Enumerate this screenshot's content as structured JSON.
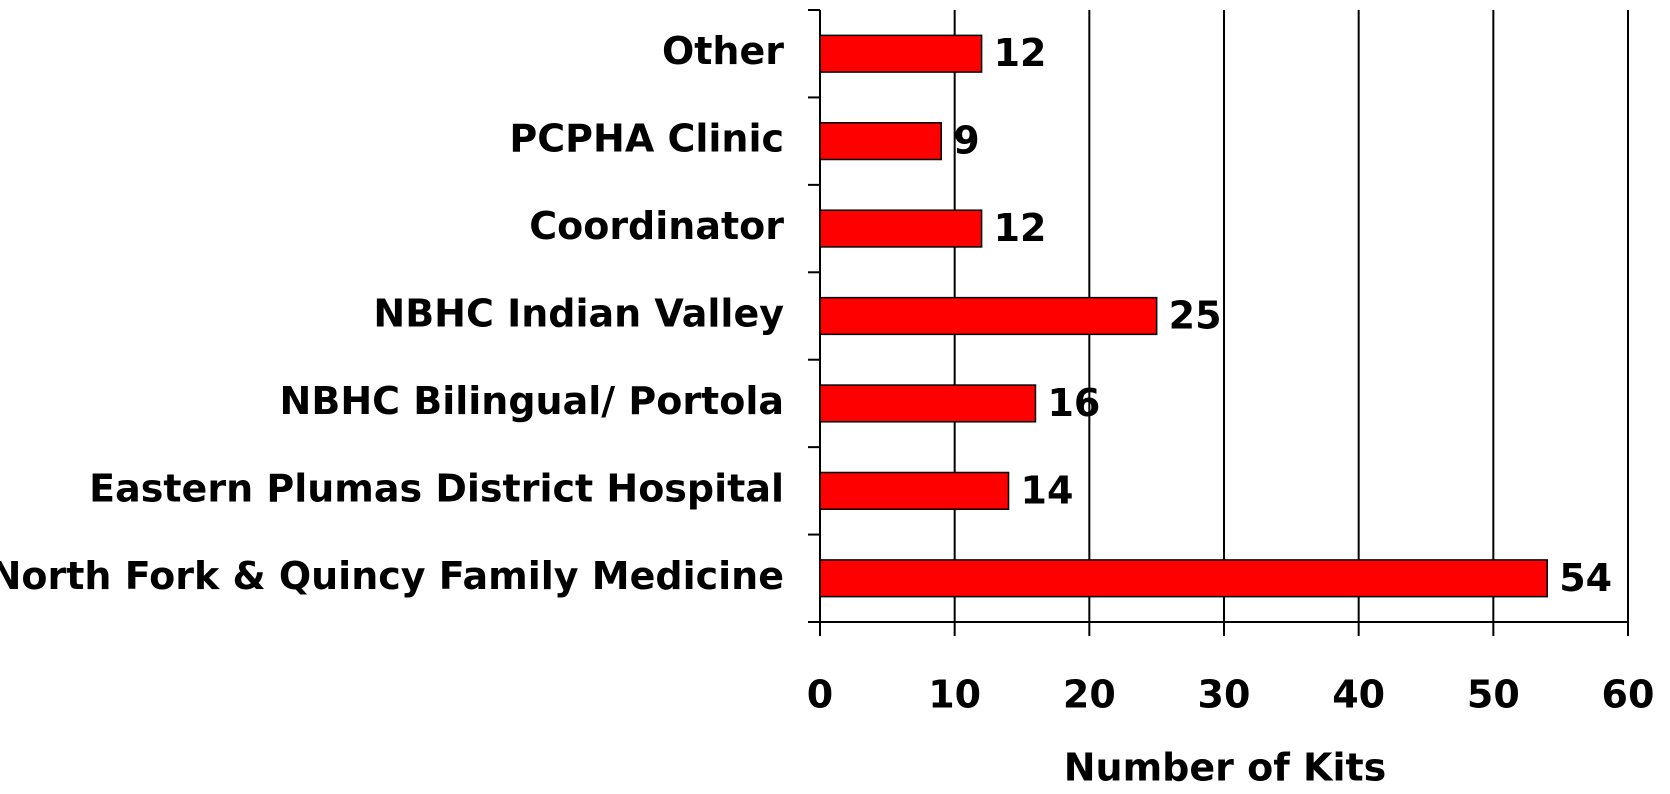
{
  "chart_data": {
    "type": "bar",
    "orientation": "horizontal",
    "categories": [
      "Other",
      "PCPHA Clinic",
      "Coordinator",
      "NBHC Indian Valley",
      "NBHC Bilingual/ Portola",
      "Eastern Plumas District Hospital",
      "North Fork & Quincy Family Medicine"
    ],
    "values": [
      12,
      9,
      12,
      25,
      16,
      14,
      54
    ],
    "color": "#ff0000",
    "xlabel": "Number of Kits",
    "xlim": [
      0,
      60
    ],
    "xticks": [
      0,
      10,
      20,
      30,
      40,
      50,
      60
    ],
    "grid": true
  }
}
